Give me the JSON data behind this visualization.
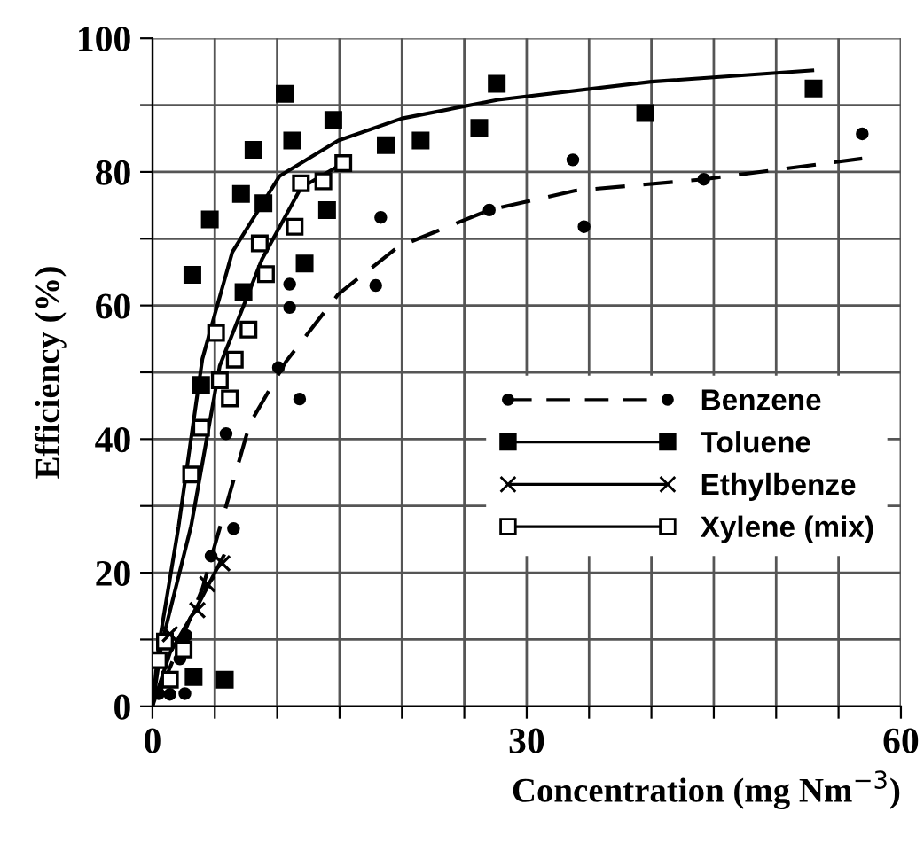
{
  "chart_data": {
    "type": "scatter",
    "xlabel": "Concentration (mg Nm$^{−3}$)",
    "ylabel": "Efficiency (%)",
    "xlim": [
      0,
      60
    ],
    "ylim": [
      0,
      100
    ],
    "xticks": [
      0,
      {
        "value": 5,
        "label": null
      },
      {
        "value": 10,
        "label": null
      },
      {
        "value": 15,
        "label": null
      },
      {
        "value": 20,
        "label": null
      },
      {
        "value": 25,
        "label": null
      },
      30,
      {
        "value": 35,
        "label": null
      },
      {
        "value": 40,
        "label": null
      },
      {
        "value": 45,
        "label": null
      },
      {
        "value": 50,
        "label": null
      },
      {
        "value": 55,
        "label": null
      },
      60
    ],
    "yticks": [
      0,
      {
        "value": 10,
        "label": null
      },
      20,
      {
        "value": 30,
        "label": null
      },
      40,
      {
        "value": 50,
        "label": null
      },
      60,
      {
        "value": 70,
        "label": null
      },
      80,
      {
        "value": 90,
        "label": null
      },
      100
    ],
    "grid": true,
    "legend": "right",
    "series": [
      {
        "name": "Benzene",
        "color": "#000000",
        "marker": "circle",
        "line_style": "dashed",
        "x": [
          18.3,
          17.9,
          27.0,
          33.7,
          34.6,
          44.2,
          56.9,
          11.0,
          11.0,
          10.1,
          11.8,
          5.9,
          6.5,
          4.7,
          2.7,
          2.2,
          2.6,
          0.5,
          1.4
        ],
        "values": [
          73.2,
          63.0,
          74.3,
          81.8,
          71.8,
          78.9,
          85.7,
          63.2,
          59.7,
          50.7,
          46.0,
          40.8,
          26.6,
          22.5,
          10.6,
          7.1,
          1.9,
          1.9,
          1.8
        ]
      },
      {
        "name": "Toluene",
        "color": "#000000",
        "marker": "square",
        "line_style": "solid",
        "x": [
          10.6,
          14.5,
          8.1,
          11.2,
          18.7,
          21.5,
          26.2,
          27.6,
          7.1,
          8.9,
          4.6,
          14.0,
          3.2,
          12.2,
          7.3,
          39.5,
          53.0,
          3.9,
          3.3,
          5.8
        ],
        "values": [
          91.7,
          87.8,
          83.3,
          84.7,
          84.0,
          84.7,
          86.6,
          93.2,
          76.7,
          75.3,
          72.9,
          74.3,
          64.6,
          66.3,
          62.0,
          88.8,
          92.5,
          48.1,
          4.4,
          4.0
        ]
      },
      {
        "name": "Ethylbenze",
        "color": "#000000",
        "marker": "cross",
        "line_style": "solid",
        "x": [
          5.6,
          4.4,
          3.6,
          1.4
        ],
        "values": [
          21.4,
          18.3,
          14.4,
          10.8
        ]
      },
      {
        "name": "Xylene (mix)",
        "color": "#ffffff",
        "marker": "square",
        "line_style": "solid",
        "x": [
          15.3,
          13.7,
          11.9,
          11.4,
          8.6,
          9.1,
          7.7,
          5.1,
          6.6,
          5.4,
          6.2,
          3.9,
          3.1,
          1.0,
          2.5,
          0.5,
          1.4
        ],
        "values": [
          81.3,
          78.6,
          78.3,
          71.8,
          69.3,
          64.7,
          56.4,
          55.9,
          51.9,
          48.8,
          46.1,
          41.7,
          34.7,
          9.7,
          8.5,
          6.9,
          4.0
        ]
      },
      {
        "type": "line",
        "color": "#000000",
        "line_style": "dashed",
        "x": [
          0.7,
          4.0,
          7.8,
          10.7,
          14.9,
          19.7,
          27.0,
          33.9,
          44.2,
          56.9
        ],
        "values": [
          2.6,
          17.6,
          42.3,
          51.6,
          61.7,
          68.8,
          74.3,
          77.2,
          78.9,
          82.0
        ]
      },
      {
        "type": "line",
        "color": "#000000",
        "line_style": "solid",
        "x": [
          0,
          0.5,
          2.1,
          4.0,
          6.4,
          10.2,
          14.9,
          20.0,
          27.7,
          40.0,
          52.9
        ],
        "values": [
          0,
          9,
          27,
          52,
          68,
          79.4,
          84.7,
          88,
          90.8,
          93.5,
          95.2
        ]
      },
      {
        "type": "line",
        "color": "#000000",
        "line_style": "solid",
        "x": [
          0,
          1.4,
          3.6,
          5.7
        ],
        "values": [
          0,
          8,
          15,
          22.5
        ]
      },
      {
        "type": "line",
        "color": "#000000",
        "line_style": "solid",
        "x": [
          0,
          0.7,
          3.1,
          5.4,
          8.8,
          11.9,
          15.3
        ],
        "values": [
          0,
          9,
          27,
          51,
          67,
          77.6,
          81.3
        ]
      }
    ]
  }
}
